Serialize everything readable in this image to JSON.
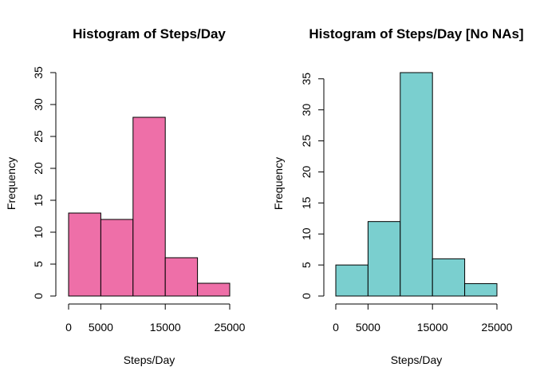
{
  "chart_data": [
    {
      "type": "histogram",
      "title": "Histogram of Steps/Day",
      "xlabel": "Steps/Day",
      "ylabel": "Frequency",
      "bin_edges": [
        0,
        5000,
        10000,
        15000,
        20000,
        25000
      ],
      "values": [
        13,
        12,
        28,
        6,
        2
      ],
      "color": "#EE6FA8",
      "xlim": [
        0,
        25000
      ],
      "ylim": [
        0,
        35
      ],
      "x_ticks": [
        0,
        5000,
        15000,
        25000
      ],
      "x_tick_labels": [
        "0",
        "5000",
        "15000",
        "25000"
      ],
      "y_ticks": [
        0,
        5,
        10,
        15,
        20,
        25,
        30,
        35
      ],
      "y_tick_labels": [
        "0",
        "5",
        "10",
        "15",
        "20",
        "25",
        "30",
        "35"
      ],
      "grid": false
    },
    {
      "type": "histogram",
      "title": "Histogram of Steps/Day [No NAs]",
      "xlabel": "Steps/Day",
      "ylabel": "Frequency",
      "bin_edges": [
        0,
        5000,
        10000,
        15000,
        20000,
        25000
      ],
      "values": [
        5,
        12,
        36,
        6,
        2
      ],
      "color": "#7ACFCF",
      "xlim": [
        0,
        25000
      ],
      "ylim": [
        0,
        36
      ],
      "x_ticks": [
        0,
        5000,
        15000,
        25000
      ],
      "x_tick_labels": [
        "0",
        "5000",
        "15000",
        "25000"
      ],
      "y_ticks": [
        0,
        5,
        10,
        15,
        20,
        25,
        30,
        35
      ],
      "y_tick_labels": [
        "0",
        "5",
        "10",
        "15",
        "20",
        "25",
        "30",
        "35"
      ],
      "grid": false
    }
  ]
}
